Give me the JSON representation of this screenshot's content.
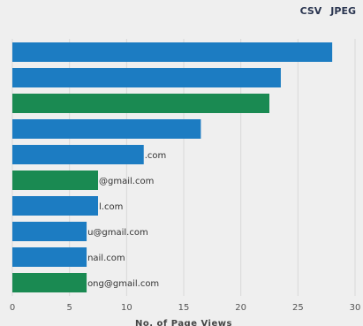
{
  "toolbar": {
    "csv_label": "CSV",
    "jpeg_label": "JPEG"
  },
  "chart_data": {
    "type": "bar",
    "orientation": "horizontal",
    "xlabel": "No. of Page Views",
    "xlim": [
      0,
      30
    ],
    "xticks": [
      0,
      5,
      10,
      15,
      20,
      25,
      30
    ],
    "bars": [
      {
        "label": "",
        "value": 28,
        "color": "#1c7cc2"
      },
      {
        "label": "",
        "value": 23.5,
        "color": "#1c7cc2"
      },
      {
        "label": "",
        "value": 22.5,
        "color": "#1a8a52"
      },
      {
        "label": "",
        "value": 16.5,
        "color": "#1c7cc2"
      },
      {
        "label": ".com",
        "value": 11.5,
        "color": "#1c7cc2"
      },
      {
        "label": "@gmail.com",
        "value": 7.5,
        "color": "#1a8a52"
      },
      {
        "label": "l.com",
        "value": 7.5,
        "color": "#1c7cc2"
      },
      {
        "label": "u@gmail.com",
        "value": 6.5,
        "color": "#1c7cc2"
      },
      {
        "label": "nail.com",
        "value": 6.5,
        "color": "#1c7cc2"
      },
      {
        "label": "ong@gmail.com",
        "value": 6.5,
        "color": "#1a8a52"
      }
    ]
  }
}
